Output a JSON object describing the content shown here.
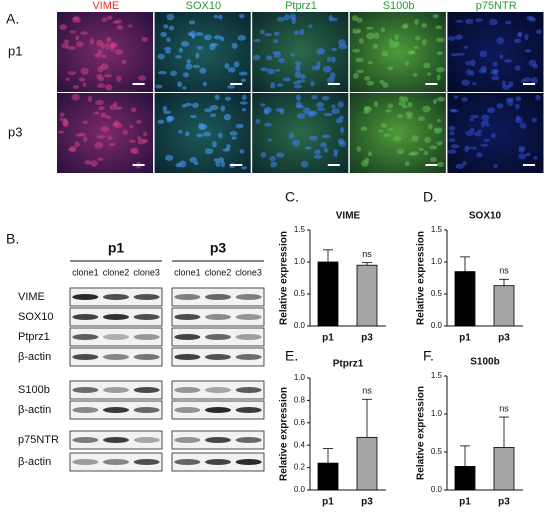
{
  "figure": {
    "panel_a": {
      "label": "A.",
      "columns": [
        {
          "text": "VIME",
          "color": "#e0302a"
        },
        {
          "text": "SOX10",
          "color": "#2a9a3a"
        },
        {
          "text": "Ptprz1",
          "color": "#2a9a3a"
        },
        {
          "text": "S100b",
          "color": "#2a9a3a"
        },
        {
          "text": "p75NTR",
          "color": "#2a9a3a"
        }
      ],
      "rows": [
        "p1",
        "p3"
      ]
    },
    "panel_b": {
      "label": "B.",
      "groups": [
        "p1",
        "p3"
      ],
      "clones": [
        "clone1",
        "clone2",
        "clone3"
      ],
      "rows": [
        "VIME",
        "SOX10",
        "Ptprz1",
        "β-actin",
        "S100b",
        "β-actin",
        "p75NTR",
        "β-actin"
      ]
    }
  },
  "chart_data": [
    {
      "type": "bar",
      "panel": "C.",
      "title": "VIME",
      "ylabel": "Relative expression",
      "categories": [
        "p1",
        "p3"
      ],
      "values": [
        1.0,
        0.95
      ],
      "errors": [
        0.19,
        0.04
      ],
      "colors": [
        "#000000",
        "#a6a6a6"
      ],
      "annotation": "ns",
      "ylim": [
        0,
        1.5
      ],
      "yticks": [
        {
          "value": 0,
          "label": "0.0"
        },
        0.5,
        {
          "value": 1,
          "label": "1.0"
        },
        1.5
      ]
    },
    {
      "type": "bar",
      "panel": "D.",
      "title": "SOX10",
      "ylabel": "Relative expression",
      "categories": [
        "p1",
        "p3"
      ],
      "values": [
        0.85,
        0.63
      ],
      "errors": [
        0.23,
        0.1
      ],
      "colors": [
        "#000000",
        "#a6a6a6"
      ],
      "annotation": "ns",
      "ylim": [
        0,
        1.5
      ],
      "yticks": [
        {
          "value": 0,
          "label": "0.0"
        },
        0.5,
        {
          "value": 1,
          "label": "1.0"
        },
        1.5
      ]
    },
    {
      "type": "bar",
      "panel": "E.",
      "title": "Ptprz1",
      "ylabel": "Relative expression",
      "categories": [
        "p1",
        "p3"
      ],
      "values": [
        0.24,
        0.47
      ],
      "errors": [
        0.13,
        0.34
      ],
      "colors": [
        "#000000",
        "#a6a6a6"
      ],
      "annotation": "ns",
      "ylim": [
        0,
        1
      ],
      "yticks": [
        {
          "value": 0,
          "label": "0.0"
        },
        0.2,
        0.4,
        0.6,
        0.8,
        {
          "value": 1,
          "label": "1.0"
        }
      ]
    },
    {
      "type": "bar",
      "panel": "F.",
      "title": "S100b",
      "ylabel": "Relative expression",
      "categories": [
        "p1",
        "p3"
      ],
      "values": [
        0.31,
        0.56
      ],
      "errors": [
        0.27,
        0.4
      ],
      "colors": [
        "#000000",
        "#a6a6a6"
      ],
      "annotation": "ns",
      "ylim": [
        0,
        1.5
      ],
      "yticks": [
        {
          "value": 0,
          "label": "0.0"
        },
        0.5,
        {
          "value": 1,
          "label": "1.0"
        },
        1.5
      ]
    }
  ]
}
